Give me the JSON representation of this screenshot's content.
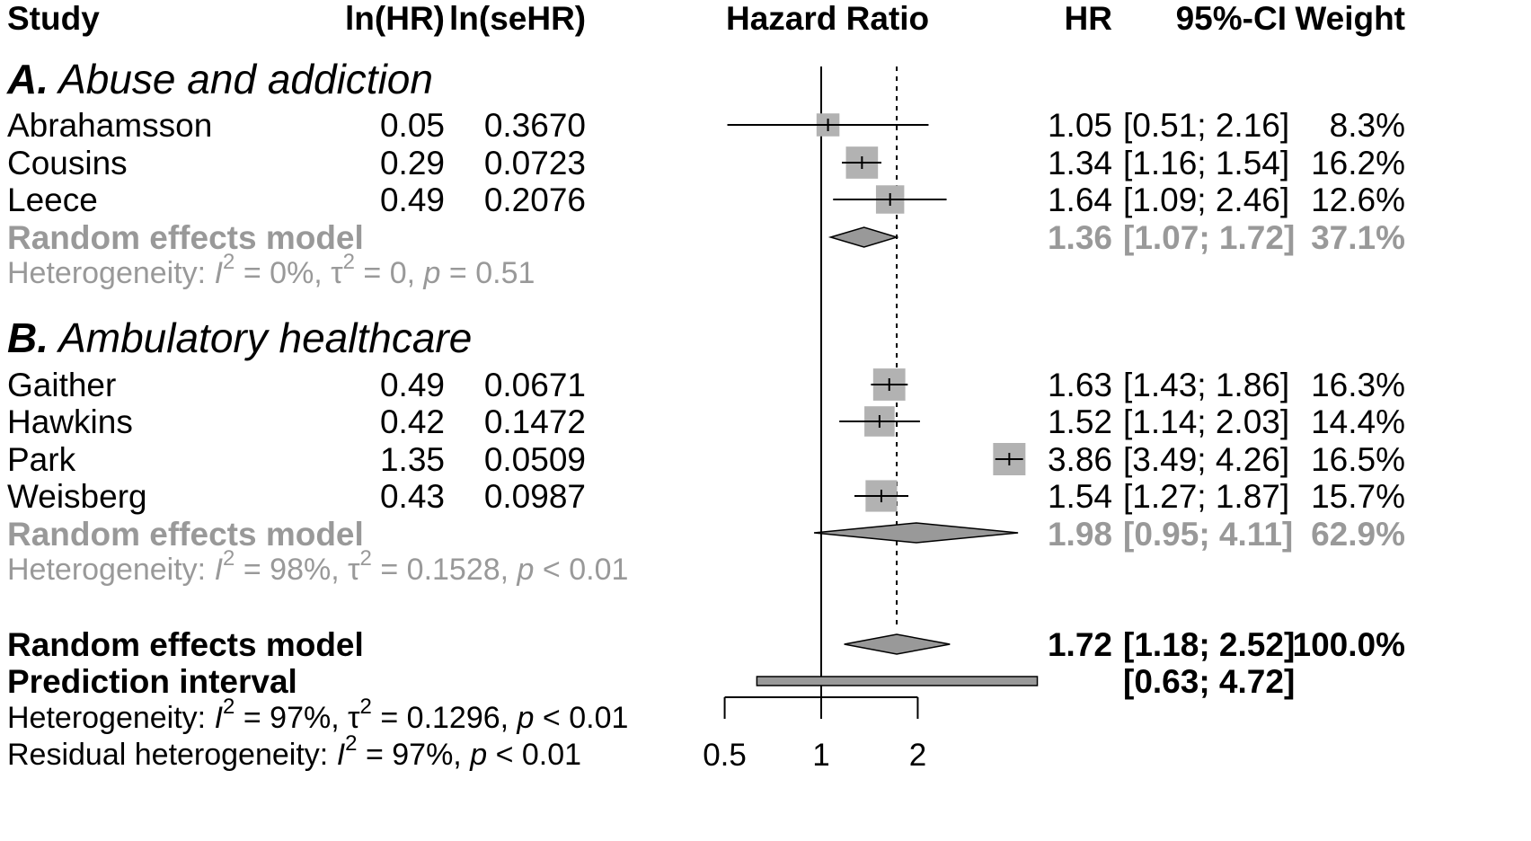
{
  "header": {
    "study": "Study",
    "ln_hr": "ln(HR)",
    "ln_sehr": "ln(seHR)",
    "hazard_ratio": "Hazard Ratio",
    "hr": "HR",
    "ci": "95%-CI",
    "weight": "Weight"
  },
  "groups": [
    {
      "letter": "A.",
      "name": "Abuse and addiction",
      "studies": [
        {
          "name": "Abrahamsson",
          "ln_hr": "0.05",
          "ln_sehr": "0.3670",
          "hr": "1.05",
          "ci": "[0.51; 2.16]",
          "weight": "8.3%"
        },
        {
          "name": "Cousins",
          "ln_hr": "0.29",
          "ln_sehr": "0.0723",
          "hr": "1.34",
          "ci": "[1.16; 1.54]",
          "weight": "16.2%"
        },
        {
          "name": "Leece",
          "ln_hr": "0.49",
          "ln_sehr": "0.2076",
          "hr": "1.64",
          "ci": "[1.09; 2.46]",
          "weight": "12.6%"
        }
      ],
      "model": {
        "label": "Random effects model",
        "hr": "1.36",
        "ci": "[1.07; 1.72]",
        "weight": "37.1%"
      },
      "heterogeneity": {
        "prefix": "Heterogeneity: ",
        "i2": " = 0%, ",
        "tau2": " = 0, ",
        "p": " = 0.51"
      }
    },
    {
      "letter": "B.",
      "name": "Ambulatory healthcare",
      "studies": [
        {
          "name": "Gaither",
          "ln_hr": "0.49",
          "ln_sehr": "0.0671",
          "hr": "1.63",
          "ci": "[1.43; 1.86]",
          "weight": "16.3%"
        },
        {
          "name": "Hawkins",
          "ln_hr": "0.42",
          "ln_sehr": "0.1472",
          "hr": "1.52",
          "ci": "[1.14; 2.03]",
          "weight": "14.4%"
        },
        {
          "name": "Park",
          "ln_hr": "1.35",
          "ln_sehr": "0.0509",
          "hr": "3.86",
          "ci": "[3.49; 4.26]",
          "weight": "16.5%"
        },
        {
          "name": "Weisberg",
          "ln_hr": "0.43",
          "ln_sehr": "0.0987",
          "hr": "1.54",
          "ci": "[1.27; 1.87]",
          "weight": "15.7%"
        }
      ],
      "model": {
        "label": "Random effects model",
        "hr": "1.98",
        "ci": "[0.95; 4.11]",
        "weight": "62.9%"
      },
      "heterogeneity": {
        "prefix": "Heterogeneity: ",
        "i2": " = 98%, ",
        "tau2": " = 0.1528, ",
        "p": " < 0.01"
      }
    }
  ],
  "overall": {
    "label": "Random effects model",
    "hr": "1.72",
    "ci": "[1.18; 2.52]",
    "weight": "100.0%",
    "prediction_label": "Prediction interval",
    "prediction_ci": "[0.63; 4.72]",
    "heterogeneity": {
      "prefix": "Heterogeneity: ",
      "i2": " = 97%, ",
      "tau2": " = 0.1296, ",
      "p": " < 0.01"
    },
    "residual": {
      "prefix": "Residual heterogeneity: ",
      "i2": " = 97%, ",
      "p": " < 0.01"
    }
  },
  "symbols": {
    "i2": "I",
    "sq": "2",
    "tau": "τ",
    "p": "p"
  },
  "colors": {
    "box": "#b2b2b2",
    "diamond": "#999999",
    "grey_text": "#999999",
    "line": "#000000"
  },
  "chart_data": {
    "type": "forest",
    "xscale": "log",
    "xlim": [
      0.5,
      2.0
    ],
    "xticks": [
      0.5,
      1,
      2
    ],
    "xtick_labels": [
      "0.5",
      "1",
      "2"
    ],
    "reference_line": 1,
    "overall_line": 1.72,
    "studies": [
      {
        "name": "Abrahamsson",
        "group": "A",
        "hr": 1.05,
        "lower": 0.51,
        "upper": 2.16,
        "weight": 8.3
      },
      {
        "name": "Cousins",
        "group": "A",
        "hr": 1.34,
        "lower": 1.16,
        "upper": 1.54,
        "weight": 16.2
      },
      {
        "name": "Leece",
        "group": "A",
        "hr": 1.64,
        "lower": 1.09,
        "upper": 2.46,
        "weight": 12.6
      },
      {
        "name": "Gaither",
        "group": "B",
        "hr": 1.63,
        "lower": 1.43,
        "upper": 1.86,
        "weight": 16.3
      },
      {
        "name": "Hawkins",
        "group": "B",
        "hr": 1.52,
        "lower": 1.14,
        "upper": 2.03,
        "weight": 14.4
      },
      {
        "name": "Park",
        "group": "B",
        "hr": 3.86,
        "lower": 3.49,
        "upper": 4.26,
        "weight": 16.5
      },
      {
        "name": "Weisberg",
        "group": "B",
        "hr": 1.54,
        "lower": 1.27,
        "upper": 1.87,
        "weight": 15.7
      }
    ],
    "subgroup_models": [
      {
        "group": "A",
        "hr": 1.36,
        "lower": 1.07,
        "upper": 1.72
      },
      {
        "group": "B",
        "hr": 1.98,
        "lower": 0.95,
        "upper": 4.11
      }
    ],
    "overall_model": {
      "hr": 1.72,
      "lower": 1.18,
      "upper": 2.52
    },
    "prediction_interval": {
      "lower": 0.63,
      "upper": 4.72
    }
  }
}
